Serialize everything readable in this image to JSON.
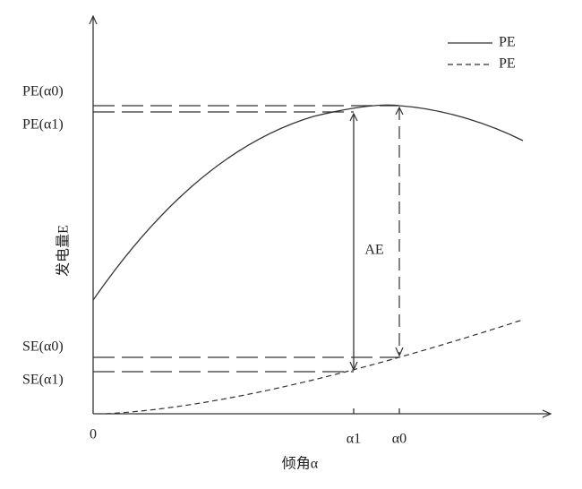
{
  "y_axis": {
    "title": "发电量E",
    "labels": [
      "PE(α0)",
      "PE(α1)",
      "SE(α0)",
      "SE(α1)"
    ]
  },
  "x_axis": {
    "title": "倾角α",
    "labels": [
      "0",
      "α1",
      "α0"
    ]
  },
  "annotation": "AE",
  "legend": [
    {
      "label": "PE"
    },
    {
      "label": "PE"
    }
  ]
}
